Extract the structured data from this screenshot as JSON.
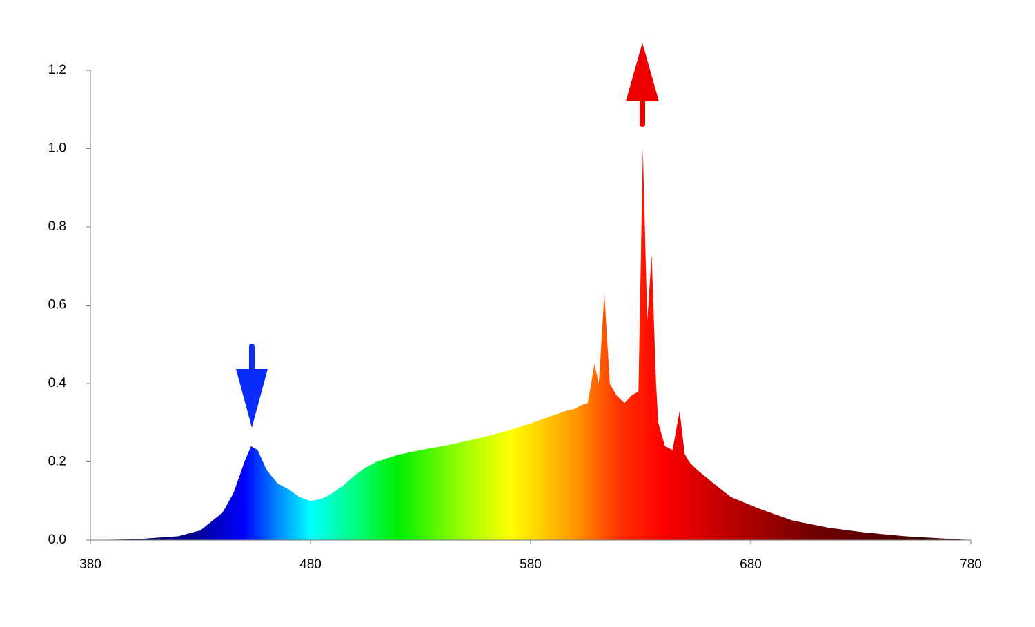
{
  "chart_data": {
    "type": "area",
    "x": [
      380,
      400,
      420,
      430,
      440,
      445,
      450,
      453,
      456,
      460,
      465,
      470,
      475,
      480,
      485,
      490,
      495,
      500,
      505,
      510,
      520,
      530,
      540,
      550,
      560,
      570,
      580,
      590,
      596,
      600,
      603,
      606,
      609,
      611,
      613.5,
      616,
      619,
      622.6,
      626,
      629,
      631,
      633,
      635,
      637,
      638,
      641,
      644.5,
      647.7,
      650,
      652,
      655.5,
      662,
      671,
      684,
      699,
      715,
      731,
      750,
      780
    ],
    "values": [
      0,
      0.002,
      0.01,
      0.025,
      0.07,
      0.12,
      0.2,
      0.24,
      0.23,
      0.18,
      0.145,
      0.13,
      0.11,
      0.1,
      0.105,
      0.12,
      0.14,
      0.165,
      0.185,
      0.2,
      0.218,
      0.23,
      0.24,
      0.252,
      0.265,
      0.28,
      0.298,
      0.318,
      0.33,
      0.335,
      0.345,
      0.35,
      0.45,
      0.4,
      0.63,
      0.4,
      0.37,
      0.35,
      0.37,
      0.38,
      1.0,
      0.56,
      0.73,
      0.4,
      0.3,
      0.24,
      0.23,
      0.33,
      0.22,
      0.2,
      0.18,
      0.15,
      0.11,
      0.08,
      0.05,
      0.032,
      0.02,
      0.01,
      0
    ],
    "xlim": [
      380,
      780
    ],
    "xticks": [
      380,
      480,
      580,
      680,
      780
    ],
    "ylim": [
      0,
      1.2
    ],
    "yticks": [
      {
        "value": 0,
        "label": "0.0"
      },
      {
        "value": 0.2,
        "label": "0.2"
      },
      {
        "value": 0.4,
        "label": "0.4"
      },
      {
        "value": 0.6,
        "label": "0.6"
      },
      {
        "value": 0.8,
        "label": "0.8"
      },
      {
        "value": 1.0,
        "label": "1.0"
      },
      {
        "value": 1.2,
        "label": "1.2"
      }
    ],
    "grid": false
  }
}
